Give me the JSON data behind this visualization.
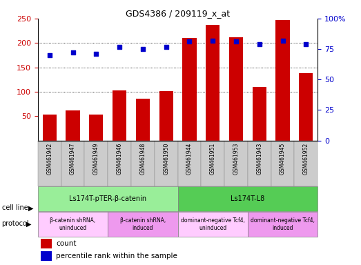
{
  "title": "GDS4386 / 209119_x_at",
  "samples": [
    "GSM461942",
    "GSM461947",
    "GSM461949",
    "GSM461946",
    "GSM461948",
    "GSM461950",
    "GSM461944",
    "GSM461951",
    "GSM461953",
    "GSM461943",
    "GSM461945",
    "GSM461952"
  ],
  "counts": [
    53,
    62,
    53,
    103,
    86,
    101,
    210,
    237,
    211,
    110,
    247,
    138
  ],
  "percentiles": [
    70,
    72,
    71,
    77,
    75,
    77,
    81,
    82,
    81,
    79,
    82,
    79
  ],
  "bar_color": "#cc0000",
  "dot_color": "#0000cc",
  "ylim_left": [
    0,
    250
  ],
  "ylim_right": [
    0,
    100
  ],
  "yticks_left": [
    50,
    100,
    150,
    200,
    250
  ],
  "ytick_labels_left": [
    "50",
    "100",
    "150",
    "200",
    "250"
  ],
  "yticks_right": [
    0,
    25,
    50,
    75,
    100
  ],
  "ytick_labels_right": [
    "0",
    "25",
    "50",
    "75",
    "100%"
  ],
  "grid_values": [
    100,
    150,
    200
  ],
  "cell_lines": [
    {
      "label": "Ls174T-pTER-β-catenin",
      "start": 0,
      "end": 6,
      "color": "#99ee99"
    },
    {
      "label": "Ls174T-L8",
      "start": 6,
      "end": 12,
      "color": "#55cc55"
    }
  ],
  "protocols": [
    {
      "label": "β-catenin shRNA,\nuninduced",
      "start": 0,
      "end": 3,
      "color": "#ffccff"
    },
    {
      "label": "β-catenin shRNA,\ninduced",
      "start": 3,
      "end": 6,
      "color": "#ee99ee"
    },
    {
      "label": "dominant-negative Tcf4,\nuninduced",
      "start": 6,
      "end": 9,
      "color": "#ffccff"
    },
    {
      "label": "dominant-negative Tcf4,\ninduced",
      "start": 9,
      "end": 12,
      "color": "#ee99ee"
    }
  ],
  "legend_count_label": "count",
  "legend_pct_label": "percentile rank within the sample",
  "cell_line_label": "cell line",
  "protocol_label": "protocol",
  "bar_width": 0.6,
  "tick_label_area_color": "#cccccc",
  "plot_bg_color": "#ffffff"
}
